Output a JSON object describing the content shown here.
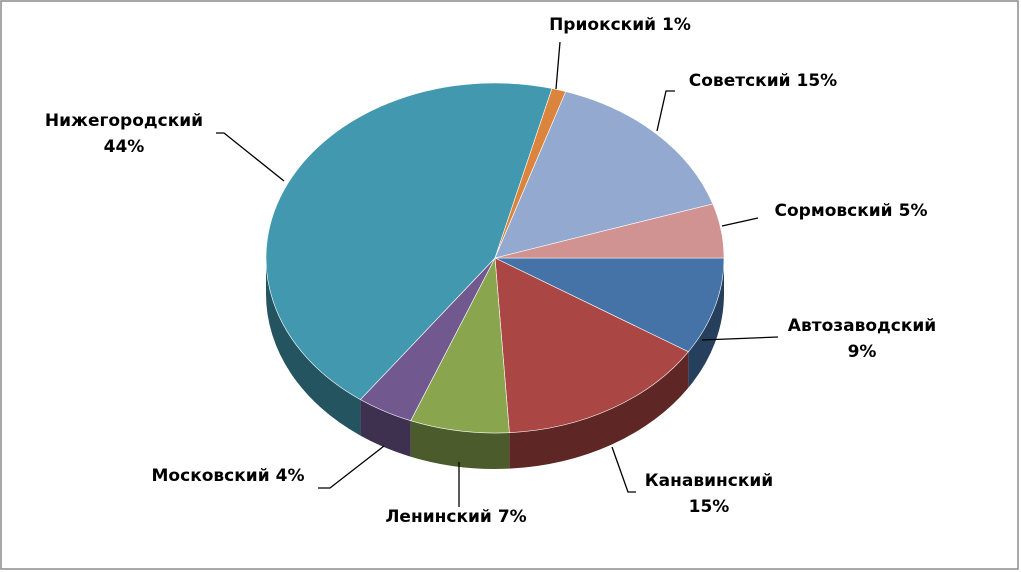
{
  "chart_data": {
    "type": "pie",
    "categories": [
      "Автозаводский",
      "Канавинский",
      "Ленинский",
      "Московский",
      "Нижегородский",
      "Приокский",
      "Советский",
      "Сормовский"
    ],
    "values": [
      9,
      15,
      7,
      4,
      44,
      1,
      15,
      5
    ],
    "value_labels": [
      "9%",
      "15%",
      "7%",
      "4%",
      "44%",
      "1%",
      "15%",
      "5%"
    ],
    "colors": [
      "#4572a7",
      "#aa4643",
      "#89a54e",
      "#71588f",
      "#4198af",
      "#db843d",
      "#93a9cf",
      "#d19392"
    ]
  }
}
